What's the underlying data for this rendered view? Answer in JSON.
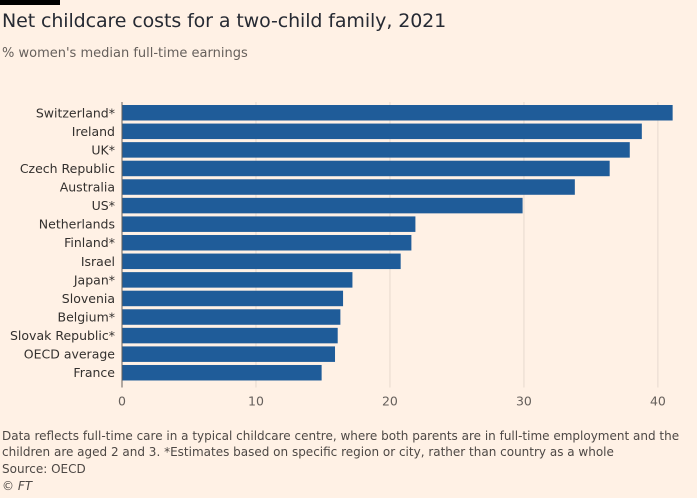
{
  "title": "Net childcare costs for a two-child family, 2021",
  "subtitle": "% women's median full-time earnings",
  "footnote": "Data reflects full-time care in a typical childcare centre, where both parents are in full-time employment and the children are aged 2 and 3. *Estimates based on specific region or city, rather than country as a whole",
  "source": "Source: OECD",
  "credit": "© FT",
  "colors": {
    "bar": "#1f5c99",
    "background": "#fff1e5",
    "grid": "#e6d9ce",
    "text": "#33302e"
  },
  "chart_data": {
    "type": "bar",
    "orientation": "horizontal",
    "categories": [
      "Switzerland*",
      "Ireland",
      "UK*",
      "Czech Republic",
      "Australia",
      "US*",
      "Netherlands",
      "Finland*",
      "Israel",
      "Japan*",
      "Slovenia",
      "Belgium*",
      "Slovak Republic*",
      "OECD average",
      "France"
    ],
    "values": [
      41.1,
      38.8,
      37.9,
      36.4,
      33.8,
      29.9,
      21.9,
      21.6,
      20.8,
      17.2,
      16.5,
      16.3,
      16.1,
      15.9,
      14.9
    ],
    "xlim": [
      0,
      41.5
    ],
    "xticks": [
      "0",
      "10",
      "20",
      "30",
      "40"
    ],
    "grid": true
  }
}
